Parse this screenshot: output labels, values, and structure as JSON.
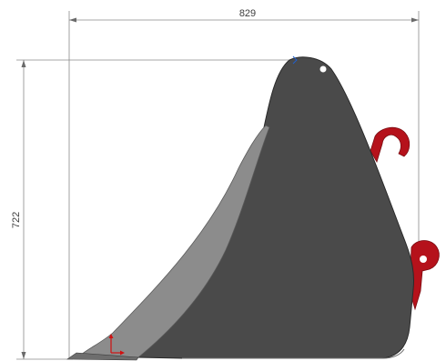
{
  "dimensions": {
    "width_label": "829",
    "height_label": "722"
  },
  "colors": {
    "bucket_body": "#4a4a4a",
    "bucket_inner_face": "#8c8c8c",
    "bucket_edge": "#2a2a2a",
    "hooks": "#b5121b",
    "dimension_lines": "#8a8a8a",
    "axis_y": "#d01010",
    "axis_x": "#2060d0"
  },
  "icons": {
    "origin_marker": "coordinate-axes-icon"
  }
}
